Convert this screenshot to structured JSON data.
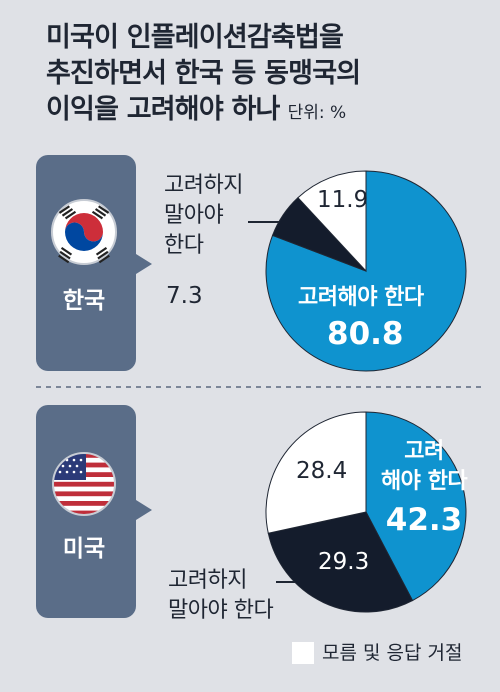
{
  "title": {
    "lines": [
      "미국이 인플레이션감축법을",
      "추진하면서 한국 등 동맹국의",
      "이익을 고려해야 하나"
    ],
    "unit": "단위: %"
  },
  "colors": {
    "consider": "#0f93cf",
    "not_consider": "#141c2c",
    "unknown": "#ffffff",
    "panel": "#5a6d88",
    "background": "#dfe1e6"
  },
  "chart_data": [
    {
      "type": "pie",
      "country": "한국",
      "flag": "korea-flag",
      "slices": [
        {
          "label": "고려해야 한다",
          "value": 80.8
        },
        {
          "label": "고려하지 말아야 한다",
          "value": 7.3
        },
        {
          "label": "모름 및 응답 거절",
          "value": 11.9
        }
      ]
    },
    {
      "type": "pie",
      "country": "미국",
      "flag": "usa-flag",
      "slices": [
        {
          "label": "고려해야 한다",
          "value": 42.3
        },
        {
          "label": "고려하지 말아야 한다",
          "value": 29.3
        },
        {
          "label": "모름 및 응답 거절",
          "value": 28.4
        }
      ]
    }
  ],
  "korea_labels": {
    "consider": "고려해야 한다",
    "consider_value": "80.8",
    "not_consider_lines": [
      "고려하지",
      "말아야",
      "한다"
    ],
    "not_consider_value": "7.3",
    "unknown_value": "11.9"
  },
  "usa_labels": {
    "consider_lines": [
      "고려",
      "해야 한다"
    ],
    "consider_value": "42.3",
    "not_consider_lines": [
      "고려하지",
      "말아야 한다"
    ],
    "not_consider_value": "29.3",
    "unknown_value": "28.4"
  },
  "legend": {
    "label": "모름 및 응답 거절"
  }
}
